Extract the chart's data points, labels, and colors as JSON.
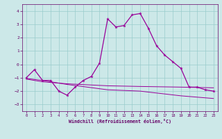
{
  "xlabel": "Windchill (Refroidissement éolien,°C)",
  "bg_color": "#cce8e8",
  "grid_color": "#99cccc",
  "line_color": "#990099",
  "spine_color": "#660066",
  "xlim": [
    -0.5,
    23.5
  ],
  "ylim": [
    -3.5,
    4.5
  ],
  "yticks": [
    -3,
    -2,
    -1,
    0,
    1,
    2,
    3,
    4
  ],
  "xticks": [
    0,
    1,
    2,
    3,
    4,
    5,
    6,
    7,
    8,
    9,
    10,
    11,
    12,
    13,
    14,
    15,
    16,
    17,
    18,
    19,
    20,
    21,
    22,
    23
  ],
  "main_x": [
    0,
    1,
    2,
    3,
    4,
    5,
    6,
    7,
    8,
    9,
    10,
    11,
    12,
    13,
    14,
    15,
    16,
    17,
    18,
    19,
    20,
    21,
    22,
    23
  ],
  "main_y": [
    -1.0,
    -0.4,
    -1.2,
    -1.2,
    -2.0,
    -2.3,
    -1.7,
    -1.2,
    -0.9,
    0.1,
    3.4,
    2.8,
    2.9,
    3.7,
    3.8,
    2.7,
    1.4,
    0.7,
    0.2,
    -0.3,
    -1.7,
    -1.7,
    -1.9,
    -2.0
  ],
  "flat1_x": [
    0,
    2,
    5,
    10,
    14,
    19,
    23
  ],
  "flat1_y": [
    -1.1,
    -1.3,
    -1.45,
    -1.6,
    -1.65,
    -1.7,
    -1.75
  ],
  "flat2_x": [
    0,
    2,
    5,
    10,
    14,
    19,
    23
  ],
  "flat2_y": [
    -1.05,
    -1.2,
    -1.5,
    -1.9,
    -2.0,
    -2.35,
    -2.55
  ]
}
